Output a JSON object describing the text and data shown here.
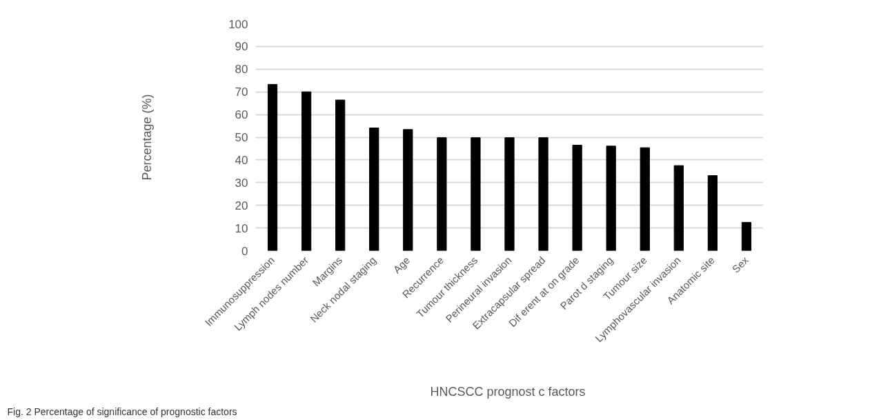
{
  "chart_data": {
    "type": "bar",
    "xlabel": "HNCSCC prognost c  factors",
    "ylabel": "Percentage (%)",
    "categories": [
      "Immunosuppression",
      "Lymph nodes number",
      "Margins",
      "Neck nodal staging",
      "Age",
      "Recurrence",
      "Tumour thickness",
      "Perineural invasion",
      "Extracapsular spread",
      "Dif erent at on grade",
      "Parot d staging",
      "Tumour size",
      "Lymphovascular invasion",
      "Anatomic site",
      "Sex"
    ],
    "values": [
      73.3,
      70.0,
      66.4,
      54.1,
      53.4,
      49.8,
      49.8,
      49.8,
      49.8,
      46.5,
      46.1,
      45.4,
      37.5,
      33.1,
      12.5
    ],
    "color": "#000000",
    "ylim": [
      0,
      100
    ],
    "yticks": [
      0,
      10,
      20,
      30,
      40,
      50,
      60,
      70,
      80,
      90,
      100
    ],
    "grid": "y",
    "annotations": [
      "Fig. 2 Percentage of significance of prognostic factors"
    ]
  }
}
